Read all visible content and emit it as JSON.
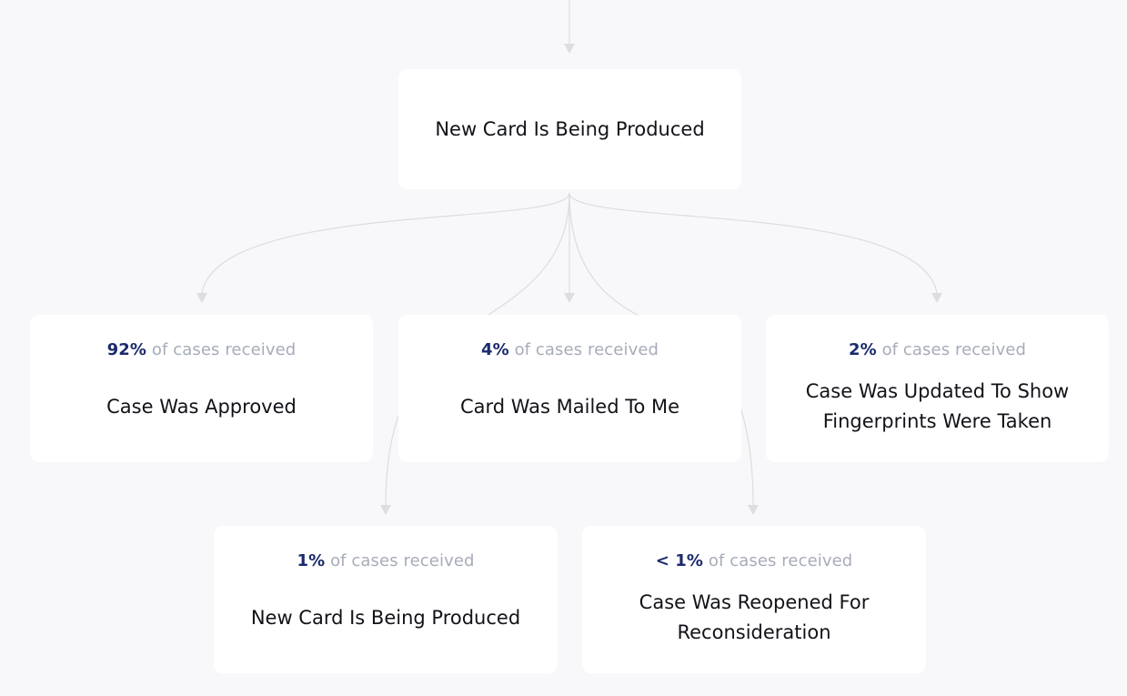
{
  "root": {
    "title": "New Card Is Being Produced"
  },
  "outcomes_label": "of cases received",
  "outcomes": [
    {
      "pct": "92%",
      "title": "Case Was Approved"
    },
    {
      "pct": "4%",
      "title": "Card Was Mailed To Me"
    },
    {
      "pct": "2%",
      "title": "Case Was Updated To Show Fingerprints Were Taken"
    },
    {
      "pct": "1%",
      "title": "New Card Is Being Produced"
    },
    {
      "pct": "< 1%",
      "title": "Case Was Reopened For Reconsideration"
    }
  ],
  "colors": {
    "background": "#f8f8fa",
    "card": "#ffffff",
    "percent": "#1b2a6b",
    "caption": "#a7acb8",
    "connector": "#d9dadd"
  }
}
